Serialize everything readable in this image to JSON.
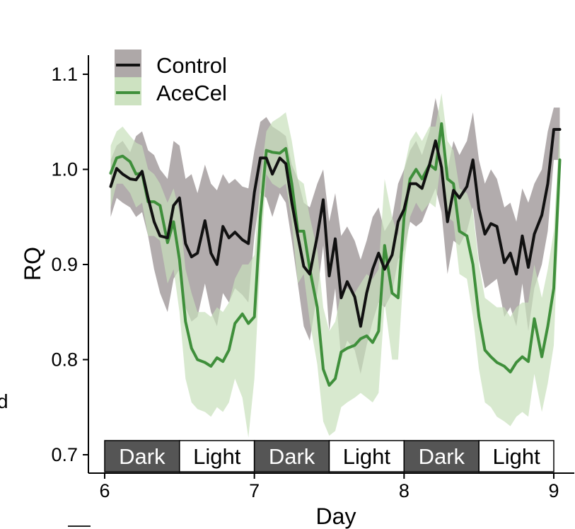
{
  "chart_data": {
    "type": "line",
    "xlabel": "Day",
    "ylabel": "RQ",
    "xlim": [
      6,
      9
    ],
    "ylim": [
      0.7,
      1.1
    ],
    "x_ticks": [
      6,
      7,
      8,
      9
    ],
    "y_ticks": [
      0.7,
      0.8,
      0.9,
      1.0,
      1.1
    ],
    "y_tick_labels": [
      "0.7",
      "0.8",
      "0.9",
      "1.0",
      "1.1"
    ],
    "grid": false,
    "legend": {
      "position": "top-left",
      "entries": [
        {
          "name": "Control",
          "line_color": "#111111",
          "band_color": "#a59e9f"
        },
        {
          "name": "AceCel",
          "line_color": "#3f8f3b",
          "band_color": "#c8dfba"
        }
      ]
    },
    "phases": [
      {
        "label": "Dark",
        "start": 6.0,
        "end": 6.5,
        "fill": "#555555",
        "text_color": "#ffffff"
      },
      {
        "label": "Light",
        "start": 6.5,
        "end": 7.0,
        "fill": "#ffffff",
        "text_color": "#000000"
      },
      {
        "label": "Dark",
        "start": 7.0,
        "end": 7.5,
        "fill": "#555555",
        "text_color": "#ffffff"
      },
      {
        "label": "Light",
        "start": 7.5,
        "end": 8.0,
        "fill": "#ffffff",
        "text_color": "#000000"
      },
      {
        "label": "Dark",
        "start": 8.0,
        "end": 8.5,
        "fill": "#555555",
        "text_color": "#ffffff"
      },
      {
        "label": "Light",
        "start": 8.5,
        "end": 9.0,
        "fill": "#ffffff",
        "text_color": "#000000"
      }
    ],
    "series": [
      {
        "name": "Control",
        "color": "#111111",
        "band_color": "#a59e9f",
        "x": [
          6.04,
          6.08,
          6.12,
          6.17,
          6.21,
          6.25,
          6.29,
          6.33,
          6.37,
          6.42,
          6.46,
          6.5,
          6.54,
          6.58,
          6.62,
          6.67,
          6.71,
          6.75,
          6.79,
          6.83,
          6.87,
          6.92,
          6.96,
          7.0,
          7.04,
          7.08,
          7.12,
          7.17,
          7.21,
          7.25,
          7.29,
          7.33,
          7.37,
          7.42,
          7.46,
          7.5,
          7.54,
          7.58,
          7.62,
          7.67,
          7.71,
          7.75,
          7.79,
          7.83,
          7.87,
          7.92,
          7.96,
          8.0,
          8.04,
          8.08,
          8.12,
          8.17,
          8.21,
          8.25,
          8.29,
          8.33,
          8.37,
          8.42,
          8.46,
          8.5,
          8.54,
          8.58,
          8.62,
          8.67,
          8.71,
          8.75,
          8.79,
          8.83,
          8.87,
          8.92,
          8.96,
          9.0,
          9.04
        ],
        "y": [
          0.982,
          1.001,
          0.995,
          0.99,
          0.989,
          0.998,
          0.97,
          0.945,
          0.93,
          0.928,
          0.962,
          0.97,
          0.922,
          0.908,
          0.912,
          0.946,
          0.912,
          0.9,
          0.94,
          0.928,
          0.934,
          0.926,
          0.922,
          0.976,
          1.012,
          1.012,
          0.995,
          1.012,
          1.006,
          0.965,
          0.93,
          0.898,
          0.89,
          0.93,
          0.968,
          0.888,
          0.927,
          0.865,
          0.882,
          0.866,
          0.835,
          0.87,
          0.895,
          0.912,
          0.895,
          0.91,
          0.945,
          0.958,
          0.985,
          0.985,
          0.98,
          1.005,
          1.03,
          1.002,
          0.945,
          0.978,
          0.97,
          0.982,
          1.01,
          0.958,
          0.932,
          0.943,
          0.94,
          0.902,
          0.912,
          0.89,
          0.93,
          0.897,
          0.932,
          0.952,
          0.985,
          1.042,
          1.042
        ],
        "upper": [
          1.01,
          1.025,
          1.03,
          1.018,
          1.035,
          1.04,
          1.02,
          1.015,
          1.0,
          0.99,
          1.03,
          1.025,
          0.99,
          0.995,
          0.975,
          1.005,
          0.985,
          0.978,
          0.995,
          0.985,
          0.99,
          0.982,
          0.98,
          1.02,
          1.05,
          1.055,
          1.045,
          1.04,
          1.035,
          1.005,
          0.99,
          0.965,
          0.96,
          0.985,
          1.0,
          0.945,
          0.975,
          0.93,
          0.94,
          0.925,
          0.905,
          0.925,
          0.95,
          0.96,
          0.935,
          0.948,
          0.985,
          1.0,
          1.02,
          1.03,
          1.015,
          1.04,
          1.075,
          1.045,
          1.0,
          1.03,
          1.015,
          1.03,
          1.06,
          1.01,
          0.985,
          1.0,
          0.99,
          0.96,
          0.965,
          0.945,
          0.98,
          0.965,
          0.985,
          1.0,
          1.04,
          1.065,
          1.065
        ],
        "lower": [
          0.95,
          0.97,
          0.965,
          0.96,
          0.95,
          0.955,
          0.93,
          0.895,
          0.87,
          0.85,
          0.885,
          0.895,
          0.855,
          0.84,
          0.845,
          0.88,
          0.85,
          0.835,
          0.87,
          0.86,
          0.875,
          0.868,
          0.86,
          0.93,
          0.975,
          0.97,
          0.95,
          0.975,
          0.965,
          0.925,
          0.88,
          0.835,
          0.82,
          0.87,
          0.92,
          0.83,
          0.875,
          0.8,
          0.82,
          0.81,
          0.785,
          0.815,
          0.84,
          0.86,
          0.855,
          0.87,
          0.905,
          0.915,
          0.945,
          0.94,
          0.945,
          0.965,
          0.98,
          0.955,
          0.89,
          0.925,
          0.92,
          0.935,
          0.96,
          0.905,
          0.875,
          0.88,
          0.885,
          0.845,
          0.855,
          0.835,
          0.88,
          0.83,
          0.875,
          0.9,
          0.935,
          1.01,
          1.01
        ]
      },
      {
        "name": "AceCel",
        "color": "#3f8f3b",
        "band_color": "#c8dfba",
        "x": [
          6.04,
          6.08,
          6.12,
          6.17,
          6.21,
          6.25,
          6.29,
          6.33,
          6.37,
          6.42,
          6.46,
          6.5,
          6.54,
          6.58,
          6.62,
          6.67,
          6.71,
          6.75,
          6.79,
          6.83,
          6.87,
          6.92,
          6.96,
          7.0,
          7.04,
          7.08,
          7.12,
          7.17,
          7.21,
          7.25,
          7.29,
          7.33,
          7.37,
          7.42,
          7.46,
          7.5,
          7.54,
          7.58,
          7.62,
          7.67,
          7.71,
          7.75,
          7.79,
          7.83,
          7.87,
          7.92,
          7.96,
          8.0,
          8.04,
          8.08,
          8.12,
          8.17,
          8.21,
          8.25,
          8.29,
          8.33,
          8.37,
          8.42,
          8.46,
          8.5,
          8.54,
          8.58,
          8.62,
          8.67,
          8.71,
          8.75,
          8.79,
          8.83,
          8.87,
          8.92,
          8.96,
          9.0,
          9.04
        ],
        "y": [
          0.996,
          1.012,
          1.014,
          1.008,
          0.995,
          0.996,
          0.966,
          0.966,
          0.962,
          0.923,
          0.945,
          0.905,
          0.84,
          0.812,
          0.8,
          0.797,
          0.793,
          0.802,
          0.798,
          0.81,
          0.838,
          0.848,
          0.838,
          0.845,
          0.95,
          1.02,
          1.018,
          1.017,
          1.022,
          0.985,
          0.935,
          0.935,
          0.895,
          0.855,
          0.79,
          0.773,
          0.78,
          0.808,
          0.812,
          0.815,
          0.822,
          0.825,
          0.818,
          0.83,
          0.92,
          0.87,
          0.865,
          0.95,
          0.99,
          1.0,
          0.99,
          1.005,
          1.0,
          1.048,
          0.99,
          0.985,
          0.935,
          0.93,
          0.9,
          0.845,
          0.81,
          0.803,
          0.797,
          0.793,
          0.787,
          0.797,
          0.803,
          0.798,
          0.843,
          0.803,
          0.835,
          0.875,
          1.01
        ],
        "upper": [
          1.025,
          1.04,
          1.045,
          1.035,
          1.028,
          1.025,
          1.0,
          0.995,
          0.985,
          0.965,
          0.98,
          0.955,
          0.895,
          0.87,
          0.85,
          0.85,
          0.845,
          0.855,
          0.85,
          0.86,
          0.885,
          0.9,
          0.9,
          0.91,
          0.99,
          1.04,
          1.05,
          1.055,
          1.06,
          1.03,
          0.99,
          0.985,
          0.95,
          0.915,
          0.855,
          0.83,
          0.84,
          0.87,
          0.875,
          0.87,
          0.88,
          0.89,
          0.885,
          0.895,
          0.99,
          0.95,
          0.93,
          1.0,
          1.03,
          1.04,
          1.03,
          1.045,
          1.045,
          1.08,
          1.03,
          1.02,
          0.98,
          0.975,
          0.955,
          0.9,
          0.865,
          0.86,
          0.855,
          0.855,
          0.845,
          0.855,
          0.86,
          0.86,
          0.9,
          0.865,
          0.895,
          0.935,
          1.045
        ],
        "lower": [
          0.96,
          0.985,
          0.985,
          0.975,
          0.96,
          0.965,
          0.93,
          0.93,
          0.925,
          0.88,
          0.895,
          0.85,
          0.78,
          0.755,
          0.748,
          0.745,
          0.74,
          0.75,
          0.745,
          0.755,
          0.78,
          0.76,
          0.718,
          0.78,
          0.905,
          0.995,
          0.985,
          0.98,
          0.985,
          0.945,
          0.88,
          0.89,
          0.84,
          0.795,
          0.735,
          0.72,
          0.725,
          0.75,
          0.755,
          0.76,
          0.765,
          0.76,
          0.755,
          0.765,
          0.86,
          0.8,
          0.8,
          0.9,
          0.95,
          0.965,
          0.955,
          0.965,
          0.96,
          1.015,
          0.95,
          0.945,
          0.89,
          0.885,
          0.845,
          0.79,
          0.755,
          0.75,
          0.74,
          0.735,
          0.73,
          0.74,
          0.745,
          0.74,
          0.785,
          0.745,
          0.775,
          0.815,
          0.975
        ]
      }
    ]
  },
  "edge_glyph": "d"
}
